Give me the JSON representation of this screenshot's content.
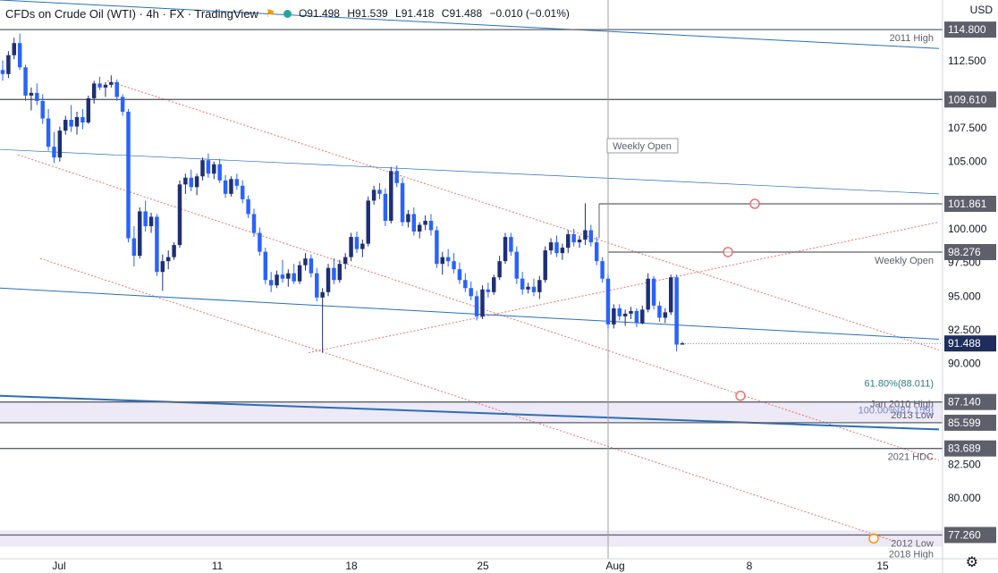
{
  "header": {
    "title": "CFDs on Crude Oil (WTI) · 4h · FX · TradingView",
    "ohlc": [
      "O91.498",
      "H91.539",
      "L91.418",
      "C91.488",
      "−0.010 (−0.01%)"
    ],
    "currency": "USD"
  },
  "colors": {
    "up": "#1e2f74",
    "down": "#2962ff",
    "accent": "#ff9800",
    "channel": "#e57373",
    "trend": "#2a6fb5",
    "zone": "#e8e4f4",
    "price_tag_bg": "#1f2d5c"
  },
  "icons": {
    "flag": "flag-icon",
    "settings": "gear-icon",
    "status": "green-dot-icon"
  },
  "chart_data": {
    "type": "candlestick",
    "x_ticks": [
      "Jul",
      "11",
      "18",
      "25",
      "Aug",
      "8",
      "15"
    ],
    "y_ticks": [
      "112.500",
      "107.500",
      "105.000",
      "100.000",
      "97.500",
      "95.000",
      "92.500",
      "90.000",
      "82.500",
      "80.000"
    ],
    "y_range": [
      75.5,
      117
    ],
    "levels": [
      {
        "value": "114.800",
        "label": "2011 High"
      },
      {
        "value": "109.610",
        "label": ""
      },
      {
        "value": "101.861",
        "label": ""
      },
      {
        "value": "98.276",
        "label": "Weekly Open"
      },
      {
        "value": "87.140",
        "label": "Jan 2010 High"
      },
      {
        "value": "85.599",
        "label": "2013 Low"
      },
      {
        "value": "83.689",
        "label": "2021 HDC"
      },
      {
        "value": "77.260",
        "label": "2012 Low"
      }
    ],
    "fib_labels": [
      "61.80%(88.011)",
      "100.00%(87.159)"
    ],
    "extra_labels": [
      "2018 High"
    ],
    "vertical_label": "Weekly Open",
    "last_price": "91.488",
    "candles": [
      [
        111.8,
        112.5,
        111.0,
        111.5
      ],
      [
        111.5,
        113.2,
        111.2,
        112.9
      ],
      [
        112.9,
        114.2,
        112.6,
        113.8
      ],
      [
        113.8,
        114.5,
        111.8,
        112.0
      ],
      [
        112.0,
        112.2,
        109.5,
        109.9
      ],
      [
        109.9,
        110.5,
        108.8,
        110.1
      ],
      [
        110.1,
        110.8,
        109.2,
        109.5
      ],
      [
        109.5,
        110.0,
        107.8,
        108.2
      ],
      [
        108.2,
        108.9,
        105.8,
        106.1
      ],
      [
        106.1,
        107.2,
        104.9,
        105.3
      ],
      [
        105.3,
        107.6,
        105.0,
        107.3
      ],
      [
        107.3,
        108.4,
        107.0,
        108.1
      ],
      [
        108.1,
        109.2,
        107.2,
        107.6
      ],
      [
        107.6,
        108.7,
        107.0,
        108.3
      ],
      [
        108.3,
        108.9,
        107.4,
        107.9
      ],
      [
        107.9,
        109.9,
        107.8,
        109.7
      ],
      [
        109.7,
        111.0,
        109.3,
        110.8
      ],
      [
        110.8,
        111.3,
        110.3,
        110.5
      ],
      [
        110.5,
        110.9,
        109.8,
        110.7
      ],
      [
        110.7,
        111.4,
        110.5,
        110.9
      ],
      [
        110.9,
        111.1,
        109.5,
        109.8
      ],
      [
        109.8,
        110.0,
        108.4,
        108.7
      ],
      [
        108.7,
        108.9,
        99.0,
        99.3
      ],
      [
        99.3,
        100.2,
        97.2,
        98.0
      ],
      [
        98.0,
        101.6,
        97.8,
        101.3
      ],
      [
        101.3,
        102.1,
        99.8,
        100.2
      ],
      [
        100.2,
        101.2,
        99.7,
        100.9
      ],
      [
        100.9,
        101.1,
        96.5,
        96.8
      ],
      [
        96.8,
        98.1,
        95.4,
        97.6
      ],
      [
        97.6,
        98.4,
        97.0,
        97.9
      ],
      [
        97.9,
        99.0,
        97.7,
        98.8
      ],
      [
        98.8,
        103.6,
        98.6,
        103.3
      ],
      [
        103.3,
        104.1,
        102.6,
        103.8
      ],
      [
        103.8,
        104.4,
        102.8,
        103.1
      ],
      [
        103.1,
        104.1,
        102.5,
        103.9
      ],
      [
        103.9,
        105.3,
        103.6,
        105.1
      ],
      [
        105.1,
        105.6,
        103.8,
        104.1
      ],
      [
        104.1,
        105.0,
        103.7,
        104.8
      ],
      [
        104.8,
        105.2,
        103.4,
        103.6
      ],
      [
        103.6,
        104.0,
        102.3,
        102.6
      ],
      [
        102.6,
        103.9,
        102.4,
        103.7
      ],
      [
        103.7,
        104.1,
        102.9,
        103.2
      ],
      [
        103.2,
        103.6,
        101.9,
        102.2
      ],
      [
        102.2,
        102.5,
        100.8,
        101.1
      ],
      [
        101.1,
        101.5,
        99.4,
        99.7
      ],
      [
        99.7,
        100.1,
        98.0,
        98.3
      ],
      [
        98.3,
        98.6,
        95.9,
        96.2
      ],
      [
        96.2,
        96.8,
        95.3,
        95.8
      ],
      [
        95.8,
        96.9,
        95.6,
        96.6
      ],
      [
        96.6,
        97.7,
        96.0,
        96.3
      ],
      [
        96.3,
        97.0,
        95.7,
        96.7
      ],
      [
        96.7,
        97.4,
        95.9,
        96.1
      ],
      [
        96.1,
        97.6,
        95.9,
        97.3
      ],
      [
        97.3,
        98.2,
        96.9,
        97.8
      ],
      [
        97.8,
        98.1,
        96.4,
        96.7
      ],
      [
        96.7,
        97.1,
        94.6,
        94.9
      ],
      [
        94.9,
        95.6,
        90.8,
        95.3
      ],
      [
        95.3,
        97.4,
        95.0,
        97.1
      ],
      [
        97.1,
        97.8,
        95.9,
        96.2
      ],
      [
        96.2,
        97.7,
        96.0,
        97.4
      ],
      [
        97.4,
        98.2,
        97.0,
        97.9
      ],
      [
        97.9,
        99.7,
        97.6,
        99.4
      ],
      [
        99.4,
        99.8,
        98.2,
        98.5
      ],
      [
        98.5,
        99.2,
        97.9,
        98.9
      ],
      [
        98.9,
        102.4,
        98.7,
        102.1
      ],
      [
        102.1,
        103.2,
        101.8,
        102.9
      ],
      [
        102.9,
        103.4,
        102.2,
        102.6
      ],
      [
        102.6,
        103.0,
        100.2,
        100.6
      ],
      [
        100.6,
        104.6,
        100.4,
        104.3
      ],
      [
        104.3,
        104.7,
        103.1,
        103.4
      ],
      [
        103.4,
        103.8,
        100.2,
        100.5
      ],
      [
        100.5,
        101.4,
        100.1,
        101.1
      ],
      [
        101.1,
        101.6,
        99.5,
        99.8
      ],
      [
        99.8,
        100.5,
        99.3,
        100.3
      ],
      [
        100.3,
        101.0,
        99.9,
        100.6
      ],
      [
        100.6,
        101.1,
        99.5,
        99.9
      ],
      [
        99.9,
        100.2,
        97.1,
        97.4
      ],
      [
        97.4,
        98.3,
        96.6,
        97.9
      ],
      [
        97.9,
        98.5,
        97.2,
        97.6
      ],
      [
        97.6,
        98.2,
        96.7,
        97.0
      ],
      [
        97.0,
        97.5,
        95.9,
        96.2
      ],
      [
        96.2,
        96.7,
        95.3,
        95.6
      ],
      [
        95.6,
        96.1,
        94.7,
        95.0
      ],
      [
        95.0,
        95.4,
        93.2,
        93.5
      ],
      [
        93.5,
        95.8,
        93.3,
        95.5
      ],
      [
        95.5,
        96.0,
        94.9,
        95.3
      ],
      [
        95.3,
        96.6,
        95.1,
        96.4
      ],
      [
        96.4,
        98.0,
        96.2,
        97.6
      ],
      [
        97.6,
        99.7,
        97.4,
        99.4
      ],
      [
        99.4,
        99.7,
        98.0,
        98.3
      ],
      [
        98.3,
        98.7,
        95.9,
        96.3
      ],
      [
        96.3,
        96.8,
        95.1,
        95.5
      ],
      [
        95.5,
        96.0,
        95.2,
        95.7
      ],
      [
        95.7,
        96.3,
        95.0,
        95.3
      ],
      [
        95.3,
        96.5,
        94.8,
        96.2
      ],
      [
        96.2,
        98.7,
        96.0,
        98.4
      ],
      [
        98.4,
        99.3,
        98.1,
        99.0
      ],
      [
        99.0,
        99.5,
        97.9,
        98.2
      ],
      [
        98.2,
        98.9,
        97.7,
        98.6
      ],
      [
        98.6,
        99.9,
        98.2,
        99.6
      ],
      [
        99.6,
        100.0,
        98.7,
        99.0
      ],
      [
        99.0,
        99.5,
        98.6,
        99.2
      ],
      [
        99.2,
        101.9,
        98.8,
        99.9
      ],
      [
        99.9,
        100.3,
        98.7,
        99.0
      ],
      [
        99.0,
        99.4,
        97.3,
        97.6
      ],
      [
        97.6,
        97.9,
        96.0,
        96.3
      ],
      [
        96.3,
        96.6,
        92.6,
        92.9
      ],
      [
        92.9,
        94.4,
        92.6,
        94.1
      ],
      [
        94.1,
        94.4,
        93.2,
        93.5
      ],
      [
        93.5,
        94.0,
        92.8,
        93.7
      ],
      [
        93.7,
        94.2,
        93.3,
        93.9
      ],
      [
        93.9,
        94.1,
        92.7,
        93.0
      ],
      [
        93.0,
        94.3,
        92.9,
        94.0
      ],
      [
        94.0,
        96.7,
        93.8,
        96.3
      ],
      [
        96.3,
        96.5,
        94.0,
        94.3
      ],
      [
        94.3,
        94.6,
        93.1,
        93.4
      ],
      [
        93.4,
        94.1,
        93.0,
        93.8
      ],
      [
        93.8,
        96.6,
        93.6,
        96.4
      ],
      [
        96.4,
        96.6,
        90.9,
        91.4
      ],
      [
        91.4,
        91.6,
        91.4,
        91.5
      ]
    ]
  }
}
